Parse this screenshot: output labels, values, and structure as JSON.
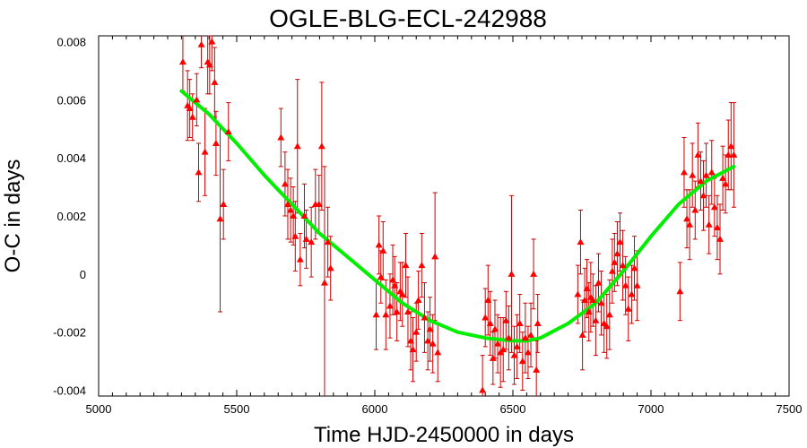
{
  "chart_data": {
    "type": "scatter",
    "title": "OGLE-BLG-ECL-242988",
    "xlabel": "Time HJD-2450000 in days",
    "ylabel": "O-C in days",
    "xlim": [
      5000,
      7500
    ],
    "ylim": [
      -0.0042,
      0.0082
    ],
    "xticks": [
      5000,
      5500,
      6000,
      6500,
      7000,
      7500
    ],
    "xtick_labels": [
      "5000",
      "5500",
      "6000",
      "6500",
      "7000",
      "7500"
    ],
    "yticks": [
      -0.004,
      -0.002,
      0,
      0.002,
      0.004,
      0.006,
      0.008
    ],
    "ytick_labels": [
      "-0.004",
      "-0.002",
      "0",
      "0.002",
      "0.004",
      "0.006",
      "0.008"
    ],
    "grid": false,
    "colors": {
      "points": "#ff0000",
      "errorbars": "#cc0000",
      "fit": "#00ee00"
    },
    "series": [
      {
        "type": "scatter_errorbars",
        "points": [
          {
            "x": 5305,
            "y": 0.0073,
            "err": 0.001
          },
          {
            "x": 5322,
            "y": 0.0058,
            "err": 0.0012
          },
          {
            "x": 5330,
            "y": 0.0057,
            "err": 0.001
          },
          {
            "x": 5340,
            "y": 0.0054,
            "err": 0.0008
          },
          {
            "x": 5355,
            "y": 0.006,
            "err": 0.0009
          },
          {
            "x": 5362,
            "y": 0.0035,
            "err": 0.001
          },
          {
            "x": 5372,
            "y": 0.0079,
            "err": 0.0008
          },
          {
            "x": 5385,
            "y": 0.0042,
            "err": 0.0015
          },
          {
            "x": 5395,
            "y": 0.0073,
            "err": 0.0011
          },
          {
            "x": 5402,
            "y": 0.0072,
            "err": 0.001
          },
          {
            "x": 5410,
            "y": 0.008,
            "err": 0.001
          },
          {
            "x": 5420,
            "y": 0.0066,
            "err": 0.0012
          },
          {
            "x": 5425,
            "y": 0.0045,
            "err": 0.0011
          },
          {
            "x": 5440,
            "y": 0.0019,
            "err": 0.0032
          },
          {
            "x": 5452,
            "y": 0.0024,
            "err": 0.0012
          },
          {
            "x": 5470,
            "y": 0.0049,
            "err": 0.001
          },
          {
            "x": 5660,
            "y": 0.0047,
            "err": 0.001
          },
          {
            "x": 5675,
            "y": 0.0031,
            "err": 0.0011
          },
          {
            "x": 5685,
            "y": 0.0024,
            "err": 0.0012
          },
          {
            "x": 5695,
            "y": 0.0022,
            "err": 0.0011
          },
          {
            "x": 5705,
            "y": 0.002,
            "err": 0.001
          },
          {
            "x": 5712,
            "y": 0.0013,
            "err": 0.0012
          },
          {
            "x": 5720,
            "y": 0.0044,
            "err": 0.0023
          },
          {
            "x": 5730,
            "y": 0.0005,
            "err": 0.0009
          },
          {
            "x": 5745,
            "y": 0.002,
            "err": 0.0011
          },
          {
            "x": 5752,
            "y": 0.0012,
            "err": 0.001
          },
          {
            "x": 5770,
            "y": 0.0011,
            "err": 0.0012
          },
          {
            "x": 5785,
            "y": 0.0024,
            "err": 0.0012
          },
          {
            "x": 5798,
            "y": 0.0024,
            "err": 0.001
          },
          {
            "x": 5808,
            "y": 0.0044,
            "err": 0.0022
          },
          {
            "x": 5818,
            "y": -0.0003,
            "err": 0.004
          },
          {
            "x": 5830,
            "y": 0.0011,
            "err": 0.0012
          },
          {
            "x": 5840,
            "y": 0.0002,
            "err": 0.0011
          },
          {
            "x": 6005,
            "y": -0.0014,
            "err": 0.0012
          },
          {
            "x": 6015,
            "y": 0.001,
            "err": 0.001
          },
          {
            "x": 6022,
            "y": -0.0001,
            "err": 0.0009
          },
          {
            "x": 6030,
            "y": 0.0008,
            "err": 0.001
          },
          {
            "x": 6040,
            "y": -0.0014,
            "err": 0.0012
          },
          {
            "x": 6055,
            "y": -0.0011,
            "err": 0.0011
          },
          {
            "x": 6065,
            "y": -0.0002,
            "err": 0.0012
          },
          {
            "x": 6072,
            "y": -0.0004,
            "err": 0.001
          },
          {
            "x": 6080,
            "y": -0.0013,
            "err": 0.001
          },
          {
            "x": 6092,
            "y": -0.0006,
            "err": 0.001
          },
          {
            "x": 6100,
            "y": -0.0007,
            "err": 0.0011
          },
          {
            "x": 6112,
            "y": 0.0003,
            "err": 0.0011
          },
          {
            "x": 6120,
            "y": -0.0013,
            "err": 0.0012
          },
          {
            "x": 6130,
            "y": -0.0023,
            "err": 0.001
          },
          {
            "x": 6138,
            "y": -0.0026,
            "err": 0.0011
          },
          {
            "x": 6150,
            "y": -0.002,
            "err": 0.001
          },
          {
            "x": 6158,
            "y": -0.0009,
            "err": 0.001
          },
          {
            "x": 6170,
            "y": 0.0003,
            "err": 0.0011
          },
          {
            "x": 6180,
            "y": -0.0015,
            "err": 0.0012
          },
          {
            "x": 6192,
            "y": -0.0023,
            "err": 0.001
          },
          {
            "x": 6200,
            "y": -0.0019,
            "err": 0.0011
          },
          {
            "x": 6210,
            "y": -0.0024,
            "err": 0.001
          },
          {
            "x": 6218,
            "y": 0.0006,
            "err": 0.0022
          },
          {
            "x": 6228,
            "y": -0.0027,
            "err": 0.001
          },
          {
            "x": 6390,
            "y": -0.004,
            "err": 0.0012
          },
          {
            "x": 6400,
            "y": -0.0015,
            "err": 0.001
          },
          {
            "x": 6410,
            "y": -0.0009,
            "err": 0.0012
          },
          {
            "x": 6418,
            "y": -0.0017,
            "err": 0.0011
          },
          {
            "x": 6428,
            "y": -0.0029,
            "err": 0.0009
          },
          {
            "x": 6435,
            "y": -0.0019,
            "err": 0.001
          },
          {
            "x": 6445,
            "y": -0.0024,
            "err": 0.001
          },
          {
            "x": 6455,
            "y": -0.0027,
            "err": 0.0012
          },
          {
            "x": 6465,
            "y": -0.0026,
            "err": 0.0011
          },
          {
            "x": 6475,
            "y": -0.0016,
            "err": 0.001
          },
          {
            "x": 6485,
            "y": -0.0022,
            "err": 0.0011
          },
          {
            "x": 6495,
            "y": 0.0,
            "err": 0.0027
          },
          {
            "x": 6505,
            "y": -0.0028,
            "err": 0.001
          },
          {
            "x": 6515,
            "y": -0.0025,
            "err": 0.0011
          },
          {
            "x": 6525,
            "y": -0.0017,
            "err": 0.001
          },
          {
            "x": 6535,
            "y": -0.003,
            "err": 0.001
          },
          {
            "x": 6545,
            "y": -0.0022,
            "err": 0.0012
          },
          {
            "x": 6555,
            "y": -0.0027,
            "err": 0.0009
          },
          {
            "x": 6565,
            "y": -0.0021,
            "err": 0.0011
          },
          {
            "x": 6575,
            "y": 0.0,
            "err": 0.0012
          },
          {
            "x": 6585,
            "y": -0.0033,
            "err": 0.001
          },
          {
            "x": 6590,
            "y": -0.0017,
            "err": 0.001
          },
          {
            "x": 6735,
            "y": -0.0007,
            "err": 0.001
          },
          {
            "x": 6745,
            "y": 0.0011,
            "err": 0.0011
          },
          {
            "x": 6752,
            "y": -0.0021,
            "err": 0.0012
          },
          {
            "x": 6760,
            "y": -0.0009,
            "err": 0.0011
          },
          {
            "x": 6768,
            "y": -0.0005,
            "err": 0.001
          },
          {
            "x": 6775,
            "y": -0.0013,
            "err": 0.001
          },
          {
            "x": 6782,
            "y": -0.0008,
            "err": 0.0012
          },
          {
            "x": 6790,
            "y": -0.0009,
            "err": 0.0009
          },
          {
            "x": 6800,
            "y": -0.0016,
            "err": 0.0012
          },
          {
            "x": 6810,
            "y": -0.0003,
            "err": 0.001
          },
          {
            "x": 6820,
            "y": -0.001,
            "err": 0.0011
          },
          {
            "x": 6830,
            "y": -0.0017,
            "err": 0.001
          },
          {
            "x": 6840,
            "y": -0.0018,
            "err": 0.0011
          },
          {
            "x": 6850,
            "y": -0.0014,
            "err": 0.0012
          },
          {
            "x": 6860,
            "y": 0.0001,
            "err": 0.0011
          },
          {
            "x": 6868,
            "y": 0.0004,
            "err": 0.001
          },
          {
            "x": 6878,
            "y": 0.0007,
            "err": 0.0011
          },
          {
            "x": 6888,
            "y": 0.0011,
            "err": 0.001
          },
          {
            "x": 6898,
            "y": 0.0003,
            "err": 0.0012
          },
          {
            "x": 6908,
            "y": -0.0004,
            "err": 0.001
          },
          {
            "x": 6918,
            "y": -0.0012,
            "err": 0.0011
          },
          {
            "x": 6930,
            "y": -0.0007,
            "err": 0.001
          },
          {
            "x": 6940,
            "y": 0.0002,
            "err": 0.0011
          },
          {
            "x": 6950,
            "y": -0.0004,
            "err": 0.0012
          },
          {
            "x": 7105,
            "y": -0.0006,
            "err": 0.001
          },
          {
            "x": 7120,
            "y": 0.0035,
            "err": 0.0012
          },
          {
            "x": 7130,
            "y": 0.0019,
            "err": 0.001
          },
          {
            "x": 7140,
            "y": 0.0017,
            "err": 0.0012
          },
          {
            "x": 7150,
            "y": 0.0034,
            "err": 0.0011
          },
          {
            "x": 7160,
            "y": 0.0022,
            "err": 0.001
          },
          {
            "x": 7170,
            "y": 0.0041,
            "err": 0.0011
          },
          {
            "x": 7180,
            "y": 0.0032,
            "err": 0.001
          },
          {
            "x": 7190,
            "y": 0.0027,
            "err": 0.0012
          },
          {
            "x": 7200,
            "y": 0.0034,
            "err": 0.0011
          },
          {
            "x": 7210,
            "y": 0.0017,
            "err": 0.001
          },
          {
            "x": 7220,
            "y": 0.0035,
            "err": 0.0011
          },
          {
            "x": 7230,
            "y": 0.0023,
            "err": 0.001
          },
          {
            "x": 7240,
            "y": 0.0016,
            "err": 0.0011
          },
          {
            "x": 7250,
            "y": 0.0012,
            "err": 0.0012
          },
          {
            "x": 7260,
            "y": 0.0033,
            "err": 0.0011
          },
          {
            "x": 7270,
            "y": 0.0031,
            "err": 0.001
          },
          {
            "x": 7280,
            "y": 0.0041,
            "err": 0.0012
          },
          {
            "x": 7290,
            "y": 0.0044,
            "err": 0.0015
          },
          {
            "x": 7300,
            "y": 0.0041,
            "err": 0.0018
          }
        ]
      },
      {
        "type": "line",
        "x": [
          5300,
          5400,
          5500,
          5600,
          5700,
          5800,
          5900,
          6000,
          6100,
          6200,
          6300,
          6400,
          6500,
          6550,
          6600,
          6700,
          6800,
          6900,
          7000,
          7100,
          7200,
          7300
        ],
        "y": [
          0.0063,
          0.0055,
          0.0045,
          0.0034,
          0.0024,
          0.0014,
          0.0006,
          -0.0002,
          -0.001,
          -0.0016,
          -0.002,
          -0.0022,
          -0.0023,
          -0.0023,
          -0.0022,
          -0.0017,
          -0.001,
          0.0001,
          0.0013,
          0.0024,
          0.0032,
          0.0037
        ]
      }
    ]
  }
}
